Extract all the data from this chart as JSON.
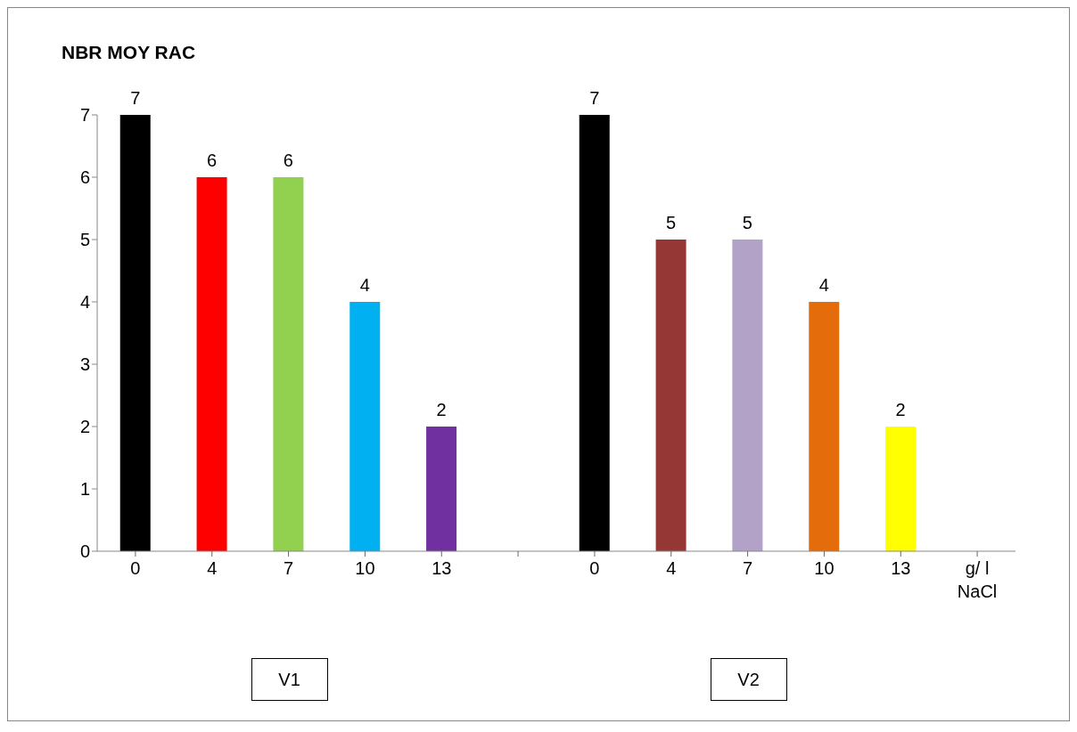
{
  "chart_data": {
    "type": "bar",
    "title": "NBR MOY RAC",
    "categories": [
      "0",
      "4",
      "7",
      "10",
      "13",
      null,
      "0",
      "4",
      "7",
      "10",
      "13",
      "g/ l NaCl"
    ],
    "values": [
      7,
      6,
      6,
      4,
      2,
      null,
      7,
      5,
      5,
      4,
      2,
      null
    ],
    "colors": [
      "#000000",
      "#ff0000",
      "#92d050",
      "#00b0f0",
      "#7030a0",
      null,
      "#000000",
      "#953735",
      "#b3a2c7",
      "#e46c0a",
      "#ffff00",
      null
    ],
    "ylim": [
      0,
      7
    ],
    "yticks": [
      0,
      1,
      2,
      3,
      4,
      5,
      6,
      7
    ],
    "data_labels": true,
    "annotations": [
      "V1",
      "V2"
    ]
  }
}
